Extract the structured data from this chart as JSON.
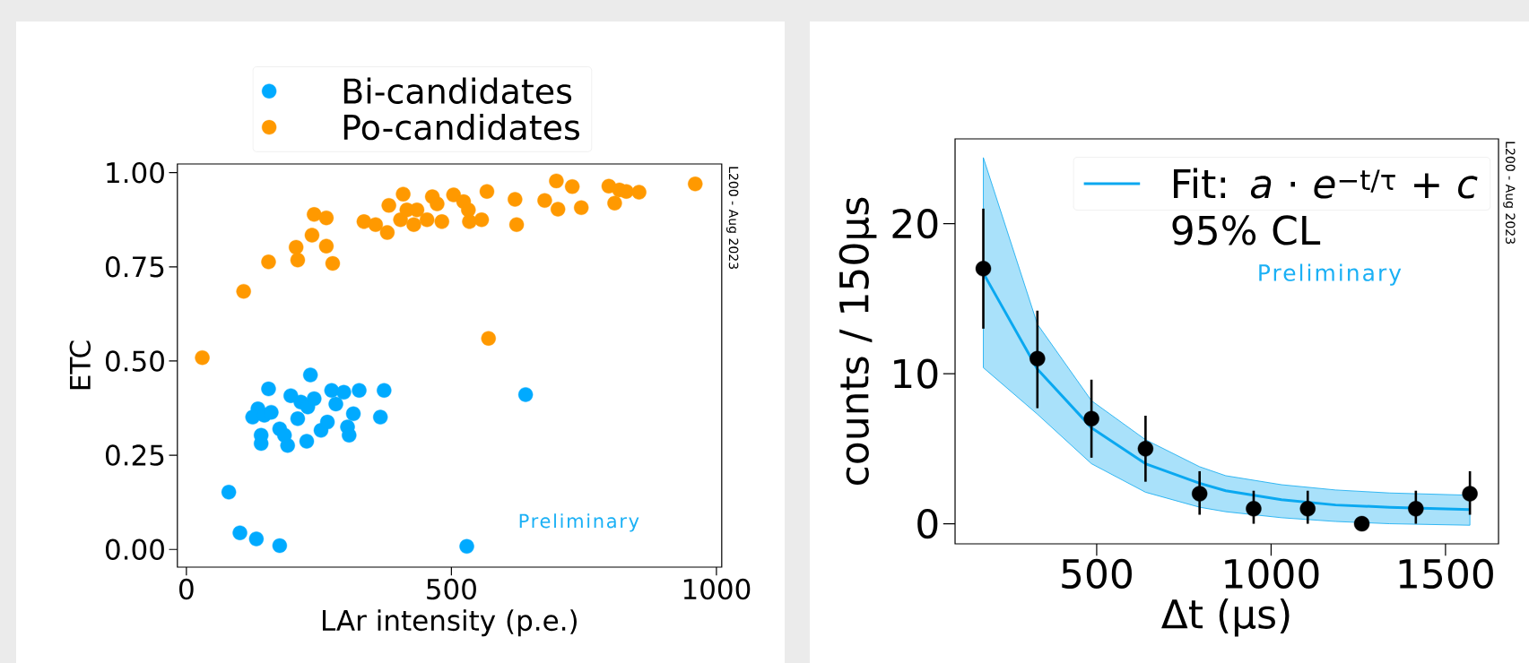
{
  "chart_data": [
    {
      "type": "scatter",
      "xlabel": "LAr intensity (p.e.)",
      "ylabel": "ETC",
      "xlim": [
        -17,
        1010
      ],
      "ylim": [
        -0.047,
        1.023
      ],
      "xticks": [
        0,
        500,
        1000
      ],
      "yticks": [
        {
          "value": 0,
          "label": "0.00"
        },
        {
          "value": 0.25,
          "label": "0.25"
        },
        {
          "value": 0.5,
          "label": "0.50"
        },
        {
          "value": 0.75,
          "label": "0.75"
        },
        {
          "value": 1,
          "label": "1.00"
        }
      ],
      "legend": "top",
      "marker": "circle",
      "annotations": [
        "L200 - Aug 2023",
        "Preliminary"
      ],
      "series": [
        {
          "name": "Bi-candidates",
          "color": "#00aaff",
          "x": [
            234,
            155,
            135,
            125,
            147,
            160,
            141,
            141,
            176,
            191,
            185,
            197,
            210,
            216,
            229,
            227,
            241,
            254,
            266,
            274,
            282,
            297,
            304,
            307,
            315,
            326,
            373,
            366,
            640,
            80,
            101,
            132,
            176,
            529
          ],
          "values": [
            0.463,
            0.426,
            0.373,
            0.351,
            0.356,
            0.364,
            0.303,
            0.281,
            0.32,
            0.276,
            0.303,
            0.408,
            0.347,
            0.391,
            0.378,
            0.287,
            0.4,
            0.316,
            0.338,
            0.422,
            0.386,
            0.417,
            0.325,
            0.303,
            0.36,
            0.422,
            0.422,
            0.351,
            0.411,
            0.152,
            0.044,
            0.028,
            0.01,
            0.008
          ]
        },
        {
          "name": "Po-candidates",
          "color": "#ff9900",
          "x": [
            30,
            108,
            155,
            207,
            210,
            237,
            241,
            264,
            264,
            276,
            335,
            357,
            379,
            382,
            409,
            404,
            416,
            429,
            435,
            454,
            464,
            473,
            482,
            504,
            523,
            532,
            534,
            557,
            567,
            570,
            620,
            623,
            676,
            698,
            701,
            728,
            745,
            797,
            808,
            817,
            830,
            854,
            960
          ],
          "values": [
            0.509,
            0.685,
            0.763,
            0.802,
            0.768,
            0.834,
            0.889,
            0.88,
            0.805,
            0.759,
            0.87,
            0.862,
            0.841,
            0.913,
            0.943,
            0.875,
            0.901,
            0.862,
            0.901,
            0.875,
            0.936,
            0.917,
            0.87,
            0.941,
            0.923,
            0.901,
            0.87,
            0.875,
            0.95,
            0.56,
            0.929,
            0.862,
            0.926,
            0.978,
            0.903,
            0.963,
            0.907,
            0.964,
            0.919,
            0.954,
            0.95,
            0.948,
            0.97
          ]
        }
      ]
    },
    {
      "type": "scatter",
      "xlabel": "Δt (µs)",
      "ylabel": "counts / 150µs",
      "xlim": [
        94,
        1652
      ],
      "ylim": [
        -1.34,
        25.65
      ],
      "xticks": [
        500,
        1000,
        1500
      ],
      "yticks": [
        0,
        10,
        20
      ],
      "legend": "top right",
      "marker": "circle",
      "annotations": [
        "L200 - Aug 2023",
        "Preliminary"
      ],
      "series": [
        {
          "type": "line",
          "marker": "none",
          "name": "Fit: *a* · *e*$^{−t/τ}$ + *c* 95% CL",
          "color": "#0aa8f0",
          "x": [
            175,
            330,
            485,
            640,
            795,
            870,
            1030,
            1185,
            1340,
            1570
          ],
          "values": [
            16.7,
            10.3,
            6.4,
            4.0,
            2.7,
            2.2,
            1.6,
            1.25,
            1.1,
            0.95
          ],
          "lower": [
            10.4,
            7.3,
            4.0,
            2.1,
            1.1,
            0.8,
            0.4,
            0.15,
            0.0,
            -0.1
          ],
          "upper": [
            24.4,
            13.3,
            8.2,
            5.6,
            3.8,
            3.2,
            2.6,
            2.25,
            2.05,
            1.9
          ]
        },
        {
          "color": "#000000",
          "x": [
            175,
            330,
            485,
            640,
            795,
            950,
            1105,
            1260,
            1415,
            1570
          ],
          "values": [
            17,
            11,
            7,
            5,
            2,
            1,
            1,
            0,
            1,
            2
          ],
          "errors": [
            [
              13,
              21
            ],
            [
              7.7,
              14.2
            ],
            [
              4.4,
              9.6
            ],
            [
              2.8,
              7.2
            ],
            [
              0.6,
              3.5
            ],
            [
              0,
              2.2
            ],
            [
              0,
              2.2
            ],
            null,
            [
              0,
              2.2
            ],
            [
              0.6,
              3.5
            ]
          ]
        }
      ]
    }
  ]
}
